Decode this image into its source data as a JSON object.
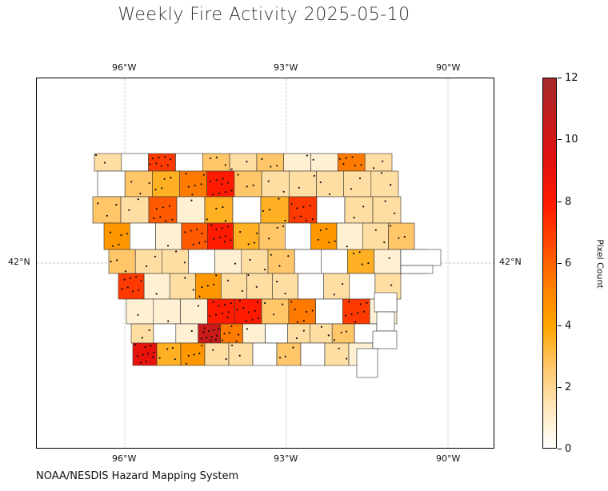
{
  "title": "Weekly Fire Activity 2025-05-10",
  "credit": "NOAA/NESDIS Hazard Mapping System",
  "map": {
    "region": "Iowa counties",
    "lon_range": [
      -97.7,
      -89.2
    ],
    "lat_range": [
      39.5,
      45.0
    ],
    "gridlines": true,
    "top_ticks": [
      "96°W",
      "93°W",
      "90°W"
    ],
    "bottom_ticks": [
      "96°W",
      "93°W",
      "90°W"
    ],
    "left_ticks": [
      "42°N"
    ],
    "right_ticks": [
      "42°N"
    ]
  },
  "colorbar": {
    "label": "Pixel Count",
    "min": 0,
    "max": 12,
    "ticks": [
      "0",
      "2",
      "4",
      "6",
      "8",
      "10",
      "12"
    ],
    "colors": [
      "#ffffff",
      "#ffe9bf",
      "#ffc76a",
      "#ffa500",
      "#ff7a00",
      "#ff4a00",
      "#ff1a00",
      "#dd1111",
      "#a52a2a"
    ]
  },
  "chart_data": {
    "type": "heatmap",
    "value_label": "Pixel Count",
    "rows": [
      [
        2,
        0,
        8,
        0,
        3,
        2,
        3,
        1,
        1,
        6,
        2
      ],
      [
        0,
        3,
        4,
        6,
        9,
        3,
        2,
        2,
        2,
        2,
        2
      ],
      [
        3,
        2,
        7,
        1,
        4,
        0,
        4,
        8,
        0,
        2,
        2
      ],
      [
        5,
        0,
        1,
        7,
        9,
        4,
        3,
        0,
        5,
        1,
        2,
        3
      ],
      [
        3,
        2,
        2,
        0,
        1,
        2,
        3,
        0,
        0,
        4,
        1,
        3
      ],
      [
        8,
        1,
        2,
        5,
        2,
        2,
        2,
        0,
        2,
        0,
        2
      ],
      [
        1,
        1,
        1,
        9,
        9,
        3,
        6,
        0,
        8,
        1
      ],
      [
        2,
        0,
        1,
        11,
        6,
        1,
        0,
        2,
        2,
        3,
        0
      ],
      [
        10,
        4,
        5,
        2,
        2,
        0,
        3,
        0,
        2,
        1
      ]
    ]
  }
}
